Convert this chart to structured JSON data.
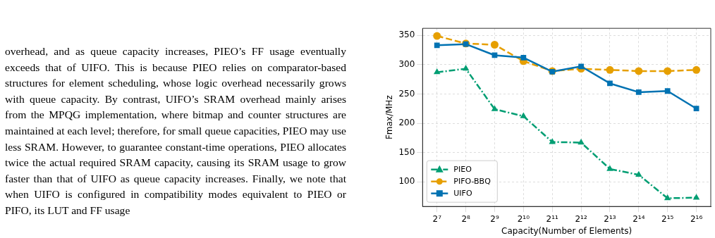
{
  "chart_data": {
    "type": "line",
    "xlabel": "Capacity(Number of Elements)",
    "ylabel": "Fmax/MHz",
    "categories": [
      "2⁷",
      "2⁸",
      "2⁹",
      "2¹⁰",
      "2¹¹",
      "2¹²",
      "2¹³",
      "2¹⁴",
      "2¹⁵",
      "2¹⁶"
    ],
    "series": [
      {
        "name": "PIEO",
        "color": "#009e73",
        "marker": "triangle",
        "line_style": "dashdot",
        "values": [
          287,
          293,
          224,
          212,
          168,
          167,
          122,
          112,
          72,
          73
        ]
      },
      {
        "name": "PIFO-BBQ",
        "color": "#e69f00",
        "marker": "circle",
        "line_style": "dashed",
        "values": [
          349,
          336,
          334,
          306,
          289,
          293,
          291,
          289,
          289,
          291
        ]
      },
      {
        "name": "UIFO",
        "color": "#0072b2",
        "marker": "square",
        "line_style": "solid",
        "values": [
          333,
          335,
          316,
          312,
          288,
          297,
          268,
          253,
          255,
          225
        ]
      }
    ],
    "ylim": [
      58,
      362
    ],
    "yticks": [
      100,
      150,
      200,
      250,
      300,
      350
    ],
    "grid": true,
    "legend": "bottom left",
    "annotations": [
      "overhead, and as queue capacity increases, PIEO’s FF usage eventually exceeds that of UIFO. This is because PIEO relies on comparator-based structures for element scheduling, whose logic overhead necessarily grows with queue capacity. By contrast, UIFO’s SRAM overhead mainly arises from the MPQG implementation, where bitmap and counter structures are maintained at each level; therefore, for small queue capacities, PIEO may use less SRAM. However, to guarantee constant-time operations, PIEO allocates twice the actual required SRAM capacity, causing its SRAM usage to grow faster than that of UIFO as queue capacity increases. Finally, we note that when UIFO is configured in compatibility modes equivalent to PIEO or PIFO, its LUT and FF usage"
    ]
  }
}
